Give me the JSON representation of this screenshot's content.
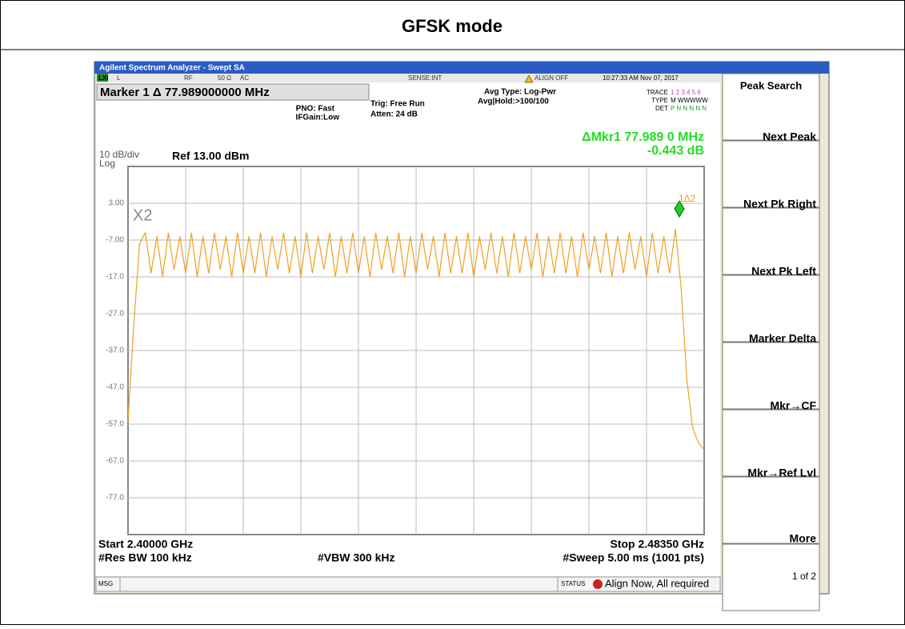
{
  "header": {
    "title": "GFSK mode"
  },
  "window": {
    "title": "Agilent Spectrum Analyzer - Swept SA"
  },
  "status_row": {
    "lxi": "LXI",
    "l": "L",
    "rf": "RF",
    "impedance": "50 Ω",
    "coupling": "AC",
    "sense": "SENSE:INT",
    "align": "ALIGN OFF",
    "datetime": "10:27:33 AM Nov 07, 2017"
  },
  "settings": {
    "marker": "Marker 1 Δ  77.989000000 MHz",
    "pno": "PNO: Fast",
    "ifgain": "IFGain:Low",
    "trig": "Trig: Free Run",
    "atten": "Atten: 24 dB",
    "avg_type": "Avg Type: Log-Pwr",
    "avg_hold": "Avg|Hold:>100/100",
    "trace_label": "TRACE",
    "trace_nums": "1 2 3 4 5 6",
    "type_label": "TYPE",
    "type_vals": "M WWWWW",
    "det_label": "DET",
    "det_vals": "P N N N N N"
  },
  "readout": {
    "freq": "ΔMkr1 77.989 0 MHz",
    "level": "-0.443 dB"
  },
  "scale": {
    "div": "10 dB/div",
    "log": "Log",
    "ref": "Ref 13.00 dBm"
  },
  "footer": {
    "start": "Start 2.40000 GHz",
    "stop": "Stop 2.48350 GHz",
    "rbw": "#Res BW 100 kHz",
    "vbw": "#VBW 300 kHz",
    "sweep": "#Sweep  5.00 ms (1001 pts)"
  },
  "statusbar": {
    "msg": "MSG",
    "status": "STATUS",
    "text": "Align Now, All required"
  },
  "softkeys": [
    "Peak Search",
    "Next Peak",
    "Next Pk Right",
    "Next Pk Left",
    "Marker Delta",
    "Mkr→CF",
    "Mkr→Ref Lvl",
    "More",
    "1 of 2"
  ],
  "chart_data": {
    "type": "line",
    "color": "#f0a020",
    "ylim": [
      -87,
      13
    ],
    "yticks": [
      {
        "value": 3,
        "label": "3.00"
      },
      {
        "value": -7,
        "label": "-7.00"
      },
      {
        "value": -17,
        "label": "-17.0"
      },
      {
        "value": -27,
        "label": "-27.0"
      },
      {
        "value": -37,
        "label": "-37.0"
      },
      {
        "value": -47,
        "label": "-47.0"
      },
      {
        "value": -57,
        "label": "-57.0"
      },
      {
        "value": -67,
        "label": "-67.0"
      },
      {
        "value": -77,
        "label": "-77.0"
      }
    ],
    "markers": {
      "m1": "1Δ2",
      "m2": "X2"
    },
    "values": [
      -56,
      -30,
      -8,
      -5,
      -16,
      -6,
      -17,
      -5,
      -15,
      -6,
      -16,
      -5,
      -17,
      -6,
      -16,
      -5,
      -15,
      -6,
      -17,
      -5,
      -16,
      -6,
      -16,
      -5,
      -17,
      -6,
      -15,
      -5,
      -16,
      -6,
      -17,
      -5,
      -16,
      -6,
      -15,
      -5,
      -17,
      -6,
      -16,
      -5,
      -16,
      -6,
      -17,
      -5,
      -15,
      -6,
      -16,
      -5,
      -17,
      -6,
      -16,
      -5,
      -15,
      -6,
      -17,
      -5,
      -16,
      -6,
      -16,
      -5,
      -17,
      -6,
      -15,
      -5,
      -16,
      -6,
      -17,
      -5,
      -16,
      -6,
      -15,
      -5,
      -17,
      -6,
      -16,
      -5,
      -16,
      -6,
      -17,
      -5,
      -15,
      -6,
      -16,
      -5,
      -17,
      -6,
      -16,
      -5,
      -15,
      -6,
      -17,
      -5,
      -16,
      -6,
      -16,
      -4,
      -20,
      -45,
      -58,
      -62,
      -64
    ]
  }
}
